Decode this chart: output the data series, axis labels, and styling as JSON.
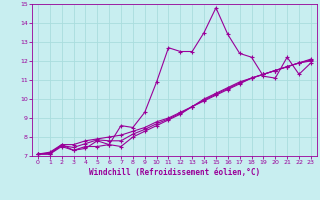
{
  "xlabel": "Windchill (Refroidissement éolien,°C)",
  "ylabel": "",
  "bg_color": "#c8eef0",
  "line_color": "#990099",
  "grid_color": "#aadddd",
  "xlim": [
    -0.5,
    23.5
  ],
  "ylim": [
    7,
    15
  ],
  "xticks": [
    0,
    1,
    2,
    3,
    4,
    5,
    6,
    7,
    8,
    9,
    10,
    11,
    12,
    13,
    14,
    15,
    16,
    17,
    18,
    19,
    20,
    21,
    22,
    23
  ],
  "yticks": [
    7,
    8,
    9,
    10,
    11,
    12,
    13,
    14,
    15
  ],
  "lines": [
    {
      "x": [
        0,
        1,
        2,
        3,
        4,
        5,
        6,
        7,
        8,
        9,
        10,
        11,
        12,
        13,
        14,
        15,
        16,
        17,
        18,
        19,
        20,
        21,
        22,
        23
      ],
      "y": [
        7.1,
        7.2,
        7.6,
        7.3,
        7.4,
        7.8,
        7.6,
        8.6,
        8.5,
        9.3,
        10.9,
        12.7,
        12.5,
        12.5,
        13.5,
        14.8,
        13.4,
        12.4,
        12.2,
        11.2,
        11.1,
        12.2,
        11.3,
        11.9
      ]
    },
    {
      "x": [
        0,
        1,
        2,
        3,
        4,
        5,
        6,
        7,
        8,
        9,
        10,
        11,
        12,
        13,
        14,
        15,
        16,
        17,
        18,
        19,
        20,
        21,
        22,
        23
      ],
      "y": [
        7.1,
        7.1,
        7.5,
        7.3,
        7.5,
        7.5,
        7.6,
        7.5,
        8.0,
        8.3,
        8.6,
        8.9,
        9.2,
        9.6,
        10.0,
        10.3,
        10.6,
        10.9,
        11.1,
        11.3,
        11.5,
        11.7,
        11.9,
        12.0
      ]
    },
    {
      "x": [
        0,
        1,
        2,
        3,
        4,
        5,
        6,
        7,
        8,
        9,
        10,
        11,
        12,
        13,
        14,
        15,
        16,
        17,
        18,
        19,
        20,
        21,
        22,
        23
      ],
      "y": [
        7.1,
        7.1,
        7.6,
        7.6,
        7.8,
        7.9,
        8.0,
        8.1,
        8.3,
        8.5,
        8.8,
        9.0,
        9.3,
        9.6,
        9.9,
        10.2,
        10.5,
        10.8,
        11.1,
        11.3,
        11.5,
        11.7,
        11.9,
        12.1
      ]
    },
    {
      "x": [
        0,
        1,
        2,
        3,
        4,
        5,
        6,
        7,
        8,
        9,
        10,
        11,
        12,
        13,
        14,
        15,
        16,
        17,
        18,
        19,
        20,
        21,
        22,
        23
      ],
      "y": [
        7.1,
        7.15,
        7.55,
        7.45,
        7.65,
        7.85,
        7.8,
        7.8,
        8.15,
        8.4,
        8.7,
        8.95,
        9.25,
        9.6,
        9.95,
        10.25,
        10.55,
        10.85,
        11.1,
        11.3,
        11.5,
        11.7,
        11.9,
        12.05
      ]
    }
  ]
}
